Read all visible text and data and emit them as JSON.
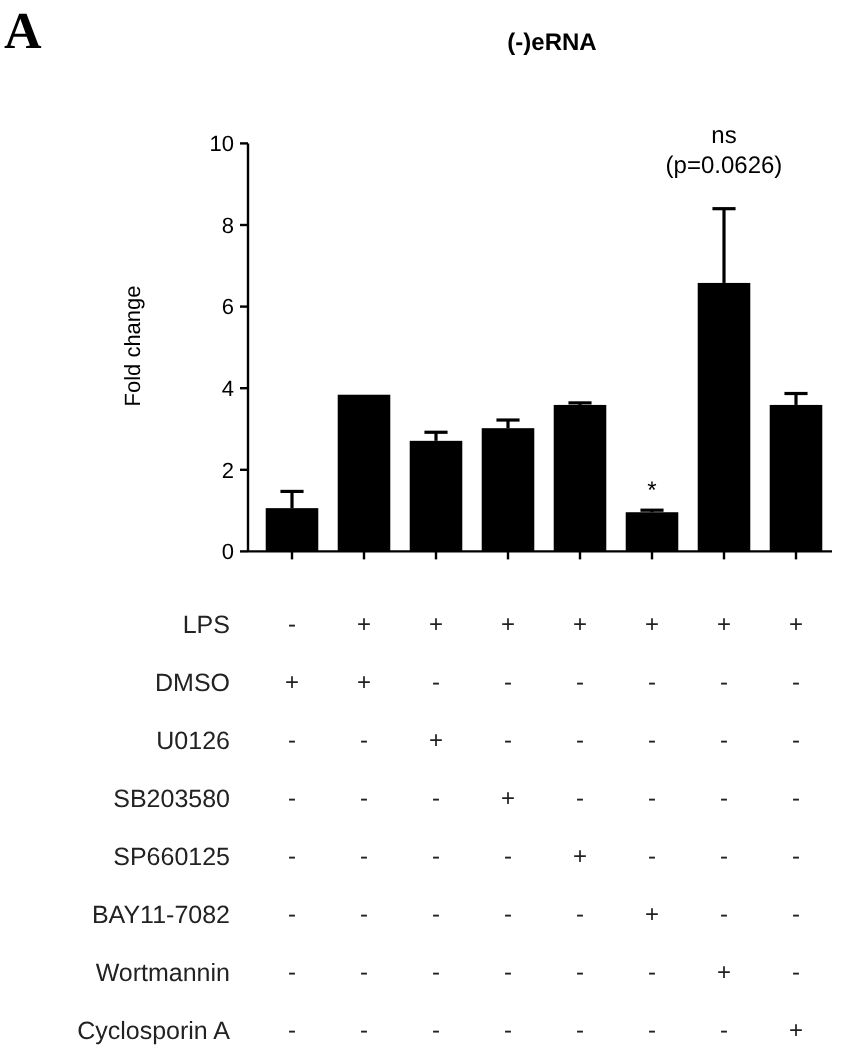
{
  "chart_data": {
    "type": "bar",
    "title": "(-)eRNA",
    "ylabel": "Fold change",
    "categories": [
      "-\n+\n-\n-\n-\n-\n-\n-",
      "+\n+\n-\n-\n-\n-\n-\n-",
      "+\n-\n+\n-\n-\n-\n-\n-",
      "+\n-\n-\n+\n-\n-\n-\n-",
      "+\n-\n-\n-\n+\n-\n-\n-",
      "+\n-\n-\n-\n-\n+\n-\n-",
      "+\n-\n-\n-\n-\n-\n+\n-",
      "+\n-\n-\n-\n-\n-\n-\n+"
    ],
    "values": [
      1.06,
      3.84,
      2.71,
      3.02,
      3.59,
      0.96,
      6.58,
      3.59
    ],
    "errors": [
      [
        1.06,
        1.47
      ],
      null,
      [
        2.71,
        2.92
      ],
      [
        3.02,
        3.22
      ],
      [
        3.59,
        3.64
      ],
      [
        0.96,
        1.01
      ],
      [
        6.58,
        8.4
      ],
      [
        3.59,
        3.87
      ]
    ],
    "color": "#000000",
    "ylim": [
      0,
      10
    ],
    "yticks": [
      0,
      2,
      4,
      6,
      8,
      10
    ],
    "grid": false,
    "annotations": [
      "A",
      {
        "text": "*",
        "x": "+\n-\n-\n-\n-\n+\n-\n-",
        "y": 1.01
      },
      {
        "text": "ns\n(p=0.0626)",
        "x": "+\n-\n-\n-\n-\n-\n+\n-",
        "y": 8.4
      },
      "LPS",
      "DMSO",
      "U0126",
      "SB203580",
      "SP660125",
      "BAY11-7082",
      "Wortmannin",
      "Cyclosporin A"
    ]
  }
}
